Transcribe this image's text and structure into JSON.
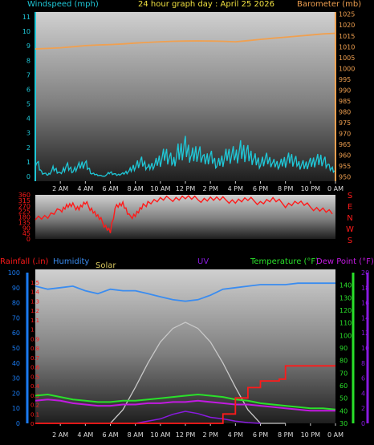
{
  "header": {
    "title": "24 hour graph day : April 25 2026",
    "left_label": "Windspeed (mph)",
    "right_label": "Barometer (mb)"
  },
  "bottom_header": {
    "rainfall_label": "Rainfall (.in)",
    "humidity_label": "Humidity",
    "solar_label": "Solar",
    "uv_label": "UV",
    "temperature_label": "Temperature (°F)",
    "dewpoint_label": "Dew Point (°F)"
  },
  "colors": {
    "wind": "#1fc8d8",
    "barometer": "#f0a050",
    "direction": "#ff1a1a",
    "rain": "#ff1a1a",
    "humidity": "#3a8cf0",
    "solar_title": "#d8c860",
    "solar_curve": "#c8c8c8",
    "uv": "#8a1ae0",
    "temperature": "#2ae02a",
    "dewpoint": "#c21ae0",
    "title": "#f0e040",
    "axis_left": "#1fc8d8",
    "axis_right": "#f0a050",
    "axis_rain": "#1a7af0",
    "axis_temp": "#2ae02a",
    "axis_uv": "#8a1ae0"
  },
  "chart_data": [
    {
      "id": "wind_barometer",
      "type": "line",
      "title": "24 hour graph day : April 25 2026",
      "x_ticks": [
        "2 AM",
        "4 AM",
        "6 AM",
        "8 AM",
        "10 AM",
        "12 PM",
        "2 PM",
        "4 PM",
        "6 PM",
        "8 PM",
        "10 PM",
        "0 AM"
      ],
      "xlim": [
        0,
        24
      ],
      "left_axis": {
        "label": "Windspeed (mph)",
        "ylim": [
          0,
          11
        ],
        "ticks": [
          0,
          1,
          2,
          3,
          4,
          5,
          6,
          7,
          8,
          9,
          10,
          11
        ]
      },
      "right_axis": {
        "label": "Barometer (mb)",
        "ylim": [
          948,
          1026
        ],
        "ticks": [
          950,
          955,
          960,
          965,
          970,
          975,
          980,
          985,
          990,
          995,
          1000,
          1005,
          1010,
          1015,
          1020,
          1025
        ]
      },
      "series": [
        {
          "name": "Windspeed (mph)",
          "axis": "left",
          "x": [
            0,
            0.5,
            1,
            1.5,
            2,
            2.5,
            3,
            3.5,
            4,
            4.5,
            5,
            5.5,
            6,
            6.5,
            7,
            7.5,
            8,
            8.5,
            9,
            9.5,
            10,
            10.5,
            11,
            11.5,
            12,
            12.5,
            13,
            13.5,
            14,
            14.5,
            15,
            15.5,
            16,
            16.5,
            17,
            17.5,
            18,
            18.5,
            19,
            19.5,
            20,
            20.5,
            21,
            21.5,
            22,
            22.5,
            23,
            23.5,
            24
          ],
          "y": [
            1.2,
            0.3,
            0.1,
            0.6,
            0.2,
            0.8,
            0.4,
            0.7,
            0.9,
            0.2,
            0.1,
            0,
            0.3,
            0.1,
            0.2,
            0.4,
            0.8,
            1.0,
            0.6,
            0.8,
            1.2,
            1.6,
            1.0,
            1.8,
            2.2,
            1.5,
            1.9,
            1.1,
            1.4,
            0.8,
            1.2,
            1.6,
            1.5,
            1.9,
            1.7,
            1.3,
            1.0,
            1.2,
            0.9,
            0.8,
            1.1,
            1.3,
            0.9,
            0.8,
            1.0,
            1.2,
            1.3,
            0.6,
            0.4
          ]
        },
        {
          "name": "Barometer (mb)",
          "axis": "right",
          "x": [
            0,
            1,
            2,
            3,
            4,
            5,
            6,
            7,
            8,
            9,
            10,
            11,
            12,
            13,
            14,
            15,
            16,
            17,
            18,
            19,
            20,
            21,
            22,
            23,
            24
          ],
          "y": [
            1009,
            1009.2,
            1009.5,
            1010,
            1010.5,
            1010.8,
            1011,
            1011.3,
            1011.7,
            1012,
            1012.3,
            1012.5,
            1012.6,
            1012.7,
            1012.6,
            1012.5,
            1012.3,
            1012.8,
            1013.4,
            1013.9,
            1014.4,
            1014.9,
            1015.4,
            1015.9,
            1016.2
          ]
        }
      ]
    },
    {
      "id": "wind_direction",
      "type": "line",
      "x_ticks": [],
      "xlim": [
        0,
        24
      ],
      "left_axis": {
        "ylim": [
          0,
          360
        ],
        "ticks": [
          0,
          45,
          90,
          135,
          180,
          225,
          270,
          315,
          360
        ]
      },
      "right_axis": {
        "labels": [
          "S",
          "E",
          "N",
          "W",
          "S"
        ]
      },
      "series": [
        {
          "name": "Wind direction",
          "x": [
            0,
            1,
            2,
            2.5,
            3,
            3.5,
            4,
            4.5,
            5,
            5.5,
            6,
            6.5,
            7,
            7.5,
            8,
            8.5,
            9,
            10,
            11,
            12,
            13,
            14,
            15,
            16,
            17,
            18,
            19,
            20,
            21,
            22,
            23,
            24
          ],
          "y": [
            180,
            180,
            235,
            270,
            270,
            255,
            290,
            245,
            180,
            120,
            60,
            280,
            290,
            180,
            200,
            250,
            300,
            320,
            330,
            340,
            320,
            330,
            320,
            310,
            320,
            300,
            320,
            280,
            300,
            260,
            240,
            200
          ]
        }
      ]
    },
    {
      "id": "rain_humidity_temp",
      "type": "line",
      "x_ticks": [
        "2 AM",
        "4 AM",
        "6 AM",
        "8 AM",
        "10 AM",
        "12 PM",
        "2 PM",
        "4 PM",
        "6 PM",
        "8 PM",
        "10 PM",
        "0 AM"
      ],
      "xlim": [
        0,
        24
      ],
      "humidity_axis": {
        "label": "Humidity",
        "ylim": [
          0,
          100
        ],
        "ticks": [
          0,
          10,
          20,
          30,
          40,
          50,
          60,
          70,
          80,
          90,
          100
        ]
      },
      "rain_axis": {
        "label": "Rainfall (.in)",
        "ylim": [
          0,
          1.6
        ],
        "ticks": [
          0,
          0.1,
          0.2,
          0.3,
          0.4,
          0.5,
          0.6,
          0.7,
          0.8,
          0.9,
          1,
          1.1,
          1.2,
          1.3,
          1.4,
          1.5
        ]
      },
      "temp_axis": {
        "label": "Temperature (°F)",
        "ylim": [
          30,
          150
        ],
        "ticks": [
          30,
          40,
          50,
          60,
          70,
          80,
          90,
          100,
          110,
          120,
          130,
          140
        ]
      },
      "uv_axis": {
        "label": "UV",
        "ylim": [
          0,
          20
        ],
        "ticks": [
          0,
          2,
          4,
          6,
          8,
          10,
          12,
          14,
          16,
          18,
          20
        ]
      },
      "series": [
        {
          "name": "Humidity",
          "axis": "humidity",
          "x": [
            0,
            1,
            2,
            3,
            4,
            5,
            6,
            7,
            8,
            9,
            10,
            11,
            12,
            13,
            14,
            15,
            16,
            17,
            18,
            19,
            20,
            21,
            22,
            23,
            24
          ],
          "y": [
            91,
            89,
            90,
            91,
            88,
            86,
            89,
            88,
            88,
            86,
            84,
            82,
            81,
            82,
            85,
            89,
            90,
            91,
            92,
            92,
            92,
            93,
            93,
            93,
            93
          ]
        },
        {
          "name": "Rainfall (.in)",
          "axis": "rain",
          "x": [
            0,
            12,
            13,
            14,
            15,
            16,
            17,
            18,
            19,
            19.5,
            20,
            21,
            22,
            23,
            24
          ],
          "y": [
            0,
            0,
            0,
            0,
            0.1,
            0.27,
            0.38,
            0.45,
            0.45,
            0.47,
            0.61,
            0.61,
            0.61,
            0.61,
            0.61
          ]
        },
        {
          "name": "Temperature (°F)",
          "axis": "temp",
          "x": [
            0,
            1,
            2,
            3,
            4,
            5,
            6,
            7,
            8,
            9,
            10,
            11,
            12,
            13,
            14,
            15,
            16,
            17,
            18,
            19,
            20,
            21,
            22,
            23,
            24
          ],
          "y": [
            52,
            53,
            51,
            49,
            48,
            47,
            47,
            48,
            48,
            49,
            50,
            51,
            52,
            53,
            52,
            51,
            49,
            48,
            46,
            45,
            44,
            43,
            42,
            42,
            41
          ]
        },
        {
          "name": "Dew Point (°F)",
          "axis": "temp",
          "x": [
            0,
            1,
            2,
            3,
            4,
            5,
            6,
            7,
            8,
            9,
            10,
            11,
            12,
            13,
            14,
            15,
            16,
            17,
            18,
            19,
            20,
            21,
            22,
            23,
            24
          ],
          "y": [
            48,
            49,
            48,
            46,
            45,
            44,
            44,
            45,
            45,
            46,
            46,
            47,
            47,
            48,
            47,
            46,
            45,
            45,
            44,
            43,
            42,
            41,
            40,
            40,
            40
          ]
        },
        {
          "name": "Solar",
          "axis": "humidity",
          "x": [
            6,
            7,
            8,
            9,
            10,
            11,
            12,
            13,
            14,
            15,
            16,
            17,
            18,
            19,
            20
          ],
          "y": [
            0,
            9,
            24,
            40,
            54,
            63,
            67,
            63,
            54,
            40,
            24,
            9,
            0,
            0,
            0
          ]
        },
        {
          "name": "UV",
          "axis": "uv",
          "x": [
            8,
            9,
            10,
            11,
            12,
            13,
            14,
            15,
            16,
            17,
            18
          ],
          "y": [
            0,
            0.3,
            0.6,
            1.2,
            1.6,
            1.3,
            0.8,
            0.6,
            0.3,
            0.1,
            0
          ]
        }
      ]
    }
  ]
}
